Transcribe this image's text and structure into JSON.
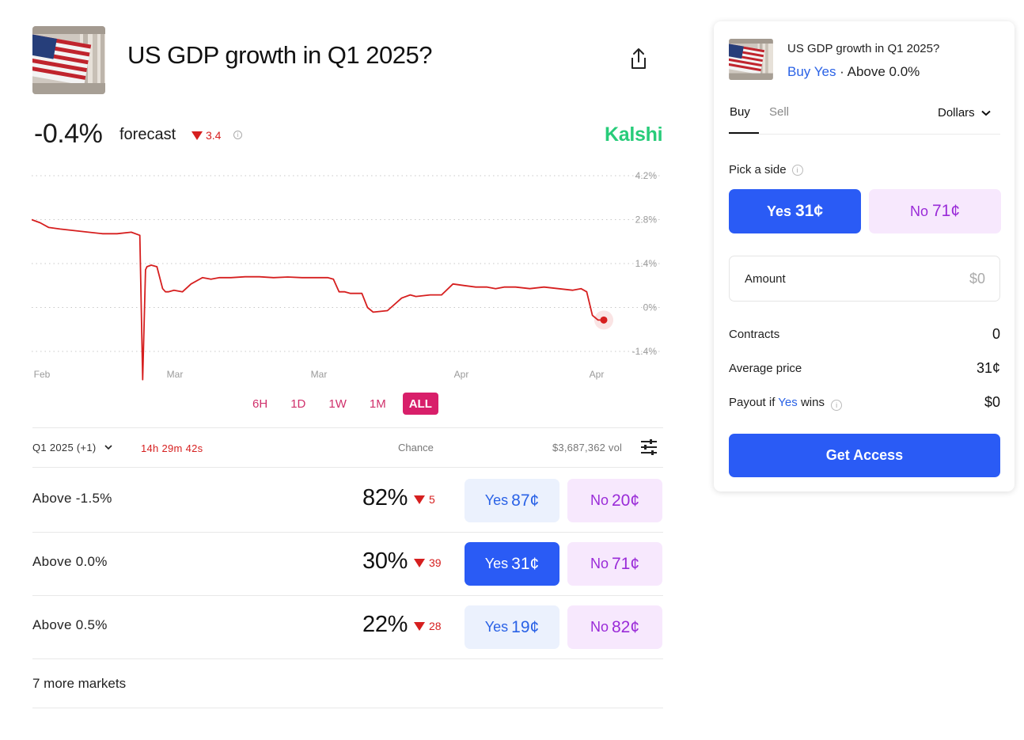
{
  "header": {
    "title": "US GDP growth in Q1 2025?",
    "share_icon": "share-icon"
  },
  "forecast": {
    "value": "-0.4%",
    "label": "forecast",
    "change": "3.4",
    "change_direction": "down",
    "brand": "Kalshi"
  },
  "colors": {
    "brand_green": "#28cc7a",
    "down_red": "#d61f1f",
    "yes_blue": "#2a5bf5",
    "no_purple": "#9a2bd8",
    "accent_pink": "#d81f6a"
  },
  "chart_data": {
    "type": "line",
    "series": [
      {
        "x": [
          0,
          3,
          6,
          10,
          15,
          20,
          25,
          30,
          35,
          38,
          39,
          40,
          40.5,
          42,
          44,
          46,
          47,
          48,
          50,
          53,
          56,
          60,
          63,
          66,
          70,
          75,
          80,
          85,
          90,
          95,
          100,
          104,
          106,
          108,
          110,
          112,
          116,
          118,
          120,
          125,
          130,
          133,
          135,
          140,
          144,
          148,
          152,
          156,
          160,
          163,
          166,
          170,
          175,
          180,
          185,
          190,
          193,
          195,
          197,
          199,
          201
        ],
        "values": [
          2.8,
          2.7,
          2.55,
          2.5,
          2.45,
          2.4,
          2.35,
          2.35,
          2.4,
          2.3,
          -2.3,
          1.2,
          1.3,
          1.35,
          1.3,
          0.6,
          0.5,
          0.5,
          0.55,
          0.5,
          0.75,
          0.95,
          0.9,
          0.95,
          0.95,
          0.98,
          0.98,
          0.95,
          0.97,
          0.95,
          0.95,
          0.95,
          0.9,
          0.5,
          0.5,
          0.45,
          0.45,
          0.0,
          -0.15,
          -0.1,
          0.3,
          0.4,
          0.35,
          0.4,
          0.4,
          0.75,
          0.7,
          0.65,
          0.65,
          0.6,
          0.65,
          0.65,
          0.6,
          0.65,
          0.6,
          0.55,
          0.6,
          0.5,
          -0.25,
          -0.4,
          -0.4
        ]
      }
    ],
    "x_tick_labels": [
      "Feb",
      "Mar",
      "Mar",
      "Apr",
      "Apr"
    ],
    "y_ticks": [
      4.2,
      2.8,
      1.4,
      0,
      -1.4
    ],
    "y_tick_labels": [
      "4.2%",
      "2.8%",
      "1.4%",
      "0%",
      "-1.4%"
    ],
    "ylim": [
      -2.3,
      4.2
    ],
    "grid": true,
    "current_value": -0.4,
    "line_color": "#d61f1f"
  },
  "range_tabs": [
    "6H",
    "1D",
    "1W",
    "1M",
    "ALL"
  ],
  "range_active": "ALL",
  "markets_header": {
    "period": "Q1 2025 (+1)",
    "timer": "14h 29m 42s",
    "chance_label": "Chance",
    "volume": "$3,687,362 vol"
  },
  "markets": [
    {
      "label": "Above -1.5%",
      "chance": "82%",
      "change": "5",
      "yes_label": "Yes",
      "yes_price": "87¢",
      "no_label": "No",
      "no_price": "20¢",
      "selected": false
    },
    {
      "label": "Above 0.0%",
      "chance": "30%",
      "change": "39",
      "yes_label": "Yes",
      "yes_price": "31¢",
      "no_label": "No",
      "no_price": "71¢",
      "selected": true
    },
    {
      "label": "Above 0.5%",
      "chance": "22%",
      "change": "28",
      "yes_label": "Yes",
      "yes_price": "19¢",
      "no_label": "No",
      "no_price": "82¢",
      "selected": false
    }
  ],
  "more_markets": "7 more markets",
  "order": {
    "title": "US GDP growth in Q1 2025?",
    "sub_action": "Buy Yes",
    "sub_separator": " · ",
    "sub_market": "Above 0.0%",
    "tab_buy": "Buy",
    "tab_sell": "Sell",
    "currency": "Dollars",
    "pick_label": "Pick a side",
    "yes_label": "Yes",
    "yes_price": "31¢",
    "no_label": "No",
    "no_price": "71¢",
    "amount_label": "Amount",
    "amount_placeholder": "$0",
    "contracts_label": "Contracts",
    "contracts_value": "0",
    "avg_price_label": "Average price",
    "avg_price_value": "31¢",
    "payout_prefix": "Payout if",
    "payout_yes": "Yes",
    "payout_suffix": "wins",
    "payout_value": "$0",
    "cta": "Get Access"
  }
}
